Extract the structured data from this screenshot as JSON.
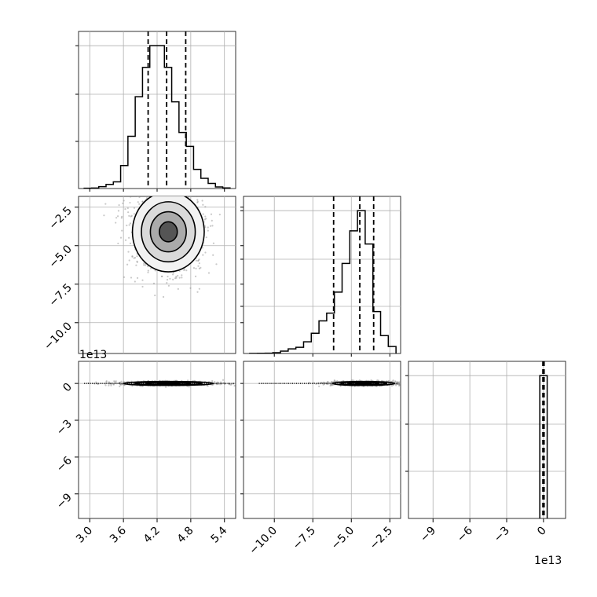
{
  "chart_data": {
    "type": "corner",
    "grid": true,
    "colors": {
      "hist": "#000000",
      "quantile": "#000000",
      "grid": "#b0b0b0",
      "scatter": "#888888"
    },
    "quantiles": [
      0.16,
      0.5,
      0.84
    ],
    "params": [
      {
        "range": [
          2.8,
          5.6
        ],
        "ticks": [
          3.0,
          3.6,
          4.2,
          4.8,
          5.4
        ],
        "tick_labels": [
          "3.0",
          "3.6",
          "4.2",
          "4.8",
          "5.4"
        ],
        "offset_label": ""
      },
      {
        "range": [
          -12.0,
          -1.8
        ],
        "ticks": [
          -10.0,
          -7.5,
          -5.0,
          -2.5
        ],
        "tick_labels": [
          "−10.0",
          "−7.5",
          "−5.0",
          "−2.5"
        ],
        "offset_label": "1e13"
      },
      {
        "range": [
          -11.0,
          1.8
        ],
        "ticks": [
          -9,
          -6,
          -3,
          0
        ],
        "tick_labels": [
          "−9",
          "−6",
          "−3",
          "0"
        ],
        "offset_label": "1e13"
      }
    ],
    "histograms": [
      {
        "bin_edges": [
          2.9,
          3.03,
          3.16,
          3.29,
          3.42,
          3.55,
          3.68,
          3.81,
          3.94,
          4.07,
          4.2,
          4.33,
          4.46,
          4.59,
          4.72,
          4.85,
          4.98,
          5.11,
          5.24,
          5.37,
          5.5
        ],
        "counts": [
          2,
          4,
          15,
          32,
          52,
          180,
          410,
          720,
          950,
          1120,
          1120,
          950,
          680,
          440,
          330,
          150,
          80,
          40,
          12,
          5
        ],
        "quantile_values": [
          4.04,
          4.37,
          4.71
        ]
      },
      {
        "bin_edges": [
          -11.6,
          -11.1,
          -10.6,
          -10.1,
          -9.6,
          -9.1,
          -8.6,
          -8.1,
          -7.6,
          -7.1,
          -6.6,
          -6.1,
          -5.6,
          -5.1,
          -4.6,
          -4.1,
          -3.6,
          -3.1,
          -2.6,
          -2.1
        ],
        "counts": [
          1,
          2,
          4,
          10,
          30,
          60,
          80,
          150,
          260,
          420,
          520,
          790,
          1160,
          1580,
          1840,
          1410,
          540,
          230,
          90
        ],
        "quantile_values": [
          -6.15,
          -4.45,
          -3.55
        ]
      },
      {
        "bin_edges": [
          -0.3,
          0.0,
          0.3
        ],
        "counts": [
          1000,
          1000
        ],
        "quantile_values": [
          -0.05,
          0.0,
          0.05
        ]
      }
    ],
    "pairs": [
      {
        "x_param": 0,
        "y_param": 1,
        "center": [
          4.4,
          -4.1
        ],
        "spread": [
          0.32,
          1.3
        ],
        "levels_sigma": [
          0.5,
          1.0,
          1.5,
          2.0
        ],
        "outlier_extent": [
          3.0,
          -12.0,
          5.6,
          -2.0
        ]
      },
      {
        "x_param": 0,
        "y_param": 2,
        "center": [
          4.4,
          0.0
        ],
        "spread": [
          0.4,
          0.08
        ],
        "levels_sigma": [
          0.5,
          1.0,
          1.5,
          2.0
        ],
        "outlier_extent": [
          2.9,
          -0.4,
          5.6,
          0.4
        ]
      },
      {
        "x_param": 1,
        "y_param": 2,
        "center": [
          -4.2,
          0.0
        ],
        "spread": [
          1.0,
          0.08
        ],
        "levels_sigma": [
          0.5,
          1.0,
          1.5,
          2.0
        ],
        "outlier_extent": [
          -11.0,
          -0.4,
          -2.0,
          0.4
        ]
      }
    ]
  }
}
